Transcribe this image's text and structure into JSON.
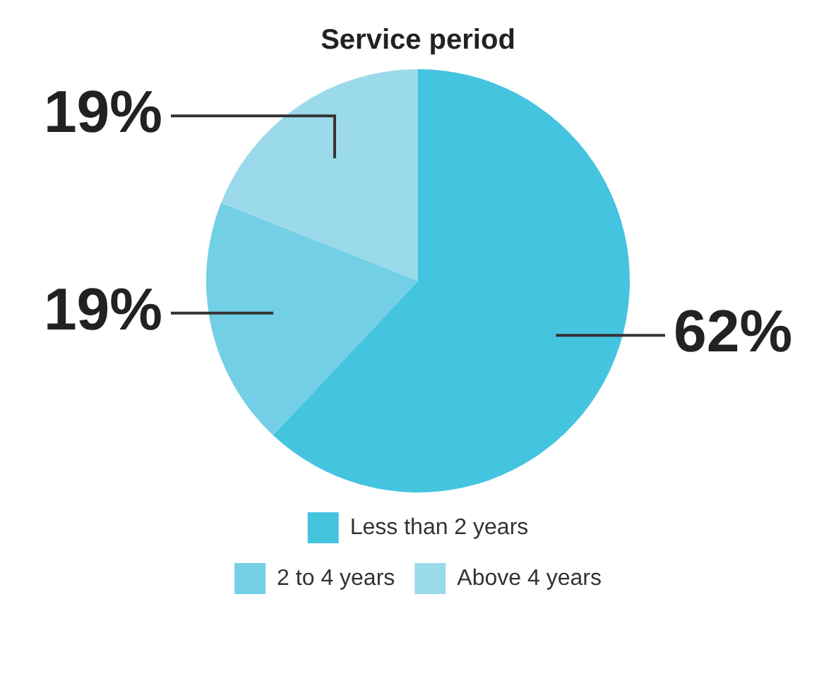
{
  "chart_data": {
    "type": "pie",
    "title": "Service period",
    "categories": [
      "Less than 2 years",
      "2 to 4 years",
      "Above 4 years"
    ],
    "values": [
      62,
      19,
      19
    ],
    "colors": [
      "#45c4e0",
      "#72cfe6",
      "#9bdaeb"
    ],
    "value_labels": [
      "62%",
      "19%",
      "19%"
    ],
    "legend": "bottom"
  }
}
